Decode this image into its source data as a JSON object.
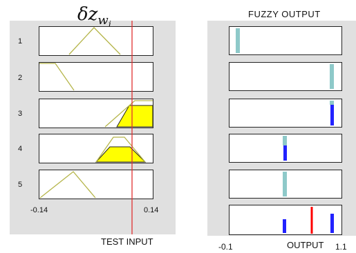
{
  "input_panel": {
    "title_symbol": "δz",
    "title_sub": "w",
    "title_subsub": "i",
    "rule_numbers": [
      "1",
      "2",
      "3",
      "4",
      "5"
    ],
    "axis_min_label": "-0.14",
    "axis_max_label": "0.14",
    "test_input_label": "TEST  INPUT",
    "test_input_value_fraction": 0.78
  },
  "output_panel": {
    "title": "FUZZY  OUTPUT",
    "axis_min_label": "-0.1",
    "axis_max_label": "1.1",
    "output_label": "OUTPUT"
  },
  "colors": {
    "membership_line": "#b5b54a",
    "fill": "#ffff00",
    "test_line": "#e03030",
    "output_teal": "#8ec9c9",
    "output_blue": "#2222ff",
    "output_line": "#ff0000",
    "panel_bg": "#e0e0e0"
  }
}
